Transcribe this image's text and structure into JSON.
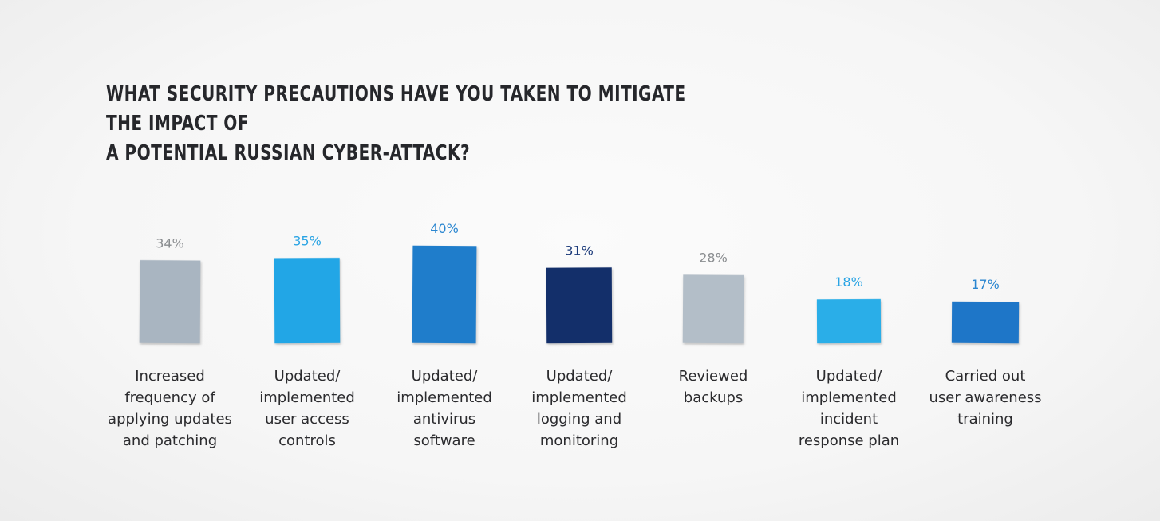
{
  "chart_data": {
    "type": "bar",
    "title_lines": [
      "WHAT SECURITY PRECAUTIONS HAVE YOU TAKEN TO MITIGATE THE IMPACT OF",
      "A POTENTIAL RUSSIAN CYBER-ATTACK?"
    ],
    "categories": [
      [
        "Increased",
        "frequency of",
        "applying updates",
        "and patching"
      ],
      [
        "Updated/",
        "implemented",
        "user access",
        "controls"
      ],
      [
        "Updated/",
        "implemented",
        "antivirus",
        "software"
      ],
      [
        "Updated/",
        "implemented",
        "logging and",
        "monitoring"
      ],
      [
        "Reviewed",
        "backups"
      ],
      [
        "Updated/",
        "implemented",
        "incident",
        "response plan"
      ],
      [
        "Carried out",
        "user awareness",
        "training"
      ]
    ],
    "values": [
      34,
      35,
      40,
      31,
      28,
      18,
      17
    ],
    "value_labels": [
      "34%",
      "35%",
      "40%",
      "31%",
      "28%",
      "18%",
      "17%"
    ],
    "bar_colors": [
      "#a9b5c1",
      "#22a6e6",
      "#1f7dcb",
      "#132f6a",
      "#b3bec8",
      "#2aaee8",
      "#1e76c8"
    ],
    "label_colors": [
      "#8a8d90",
      "#2aa4e4",
      "#2a86d0",
      "#1b3a7a",
      "#8a8d90",
      "#2aa4e4",
      "#2a86d0"
    ],
    "legend": "none",
    "grid": false
  }
}
